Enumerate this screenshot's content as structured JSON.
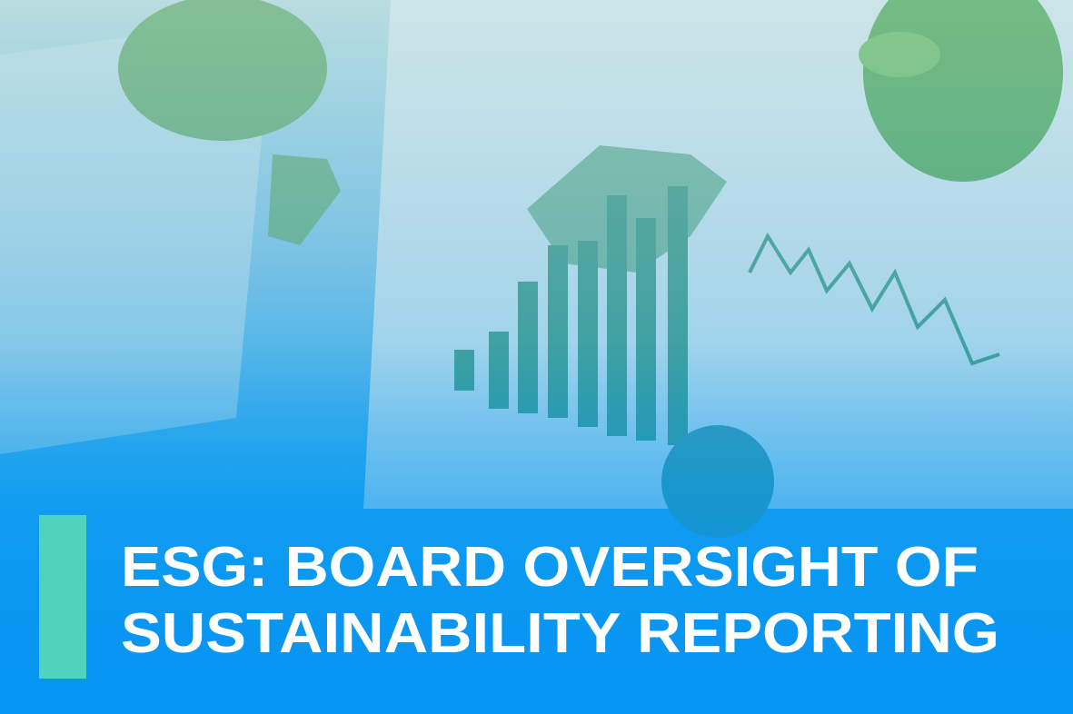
{
  "title": {
    "lines": [
      "ESG: BOARD OVERSIGHT OF",
      "SUSTAINABILITY REPORTING"
    ]
  }
}
